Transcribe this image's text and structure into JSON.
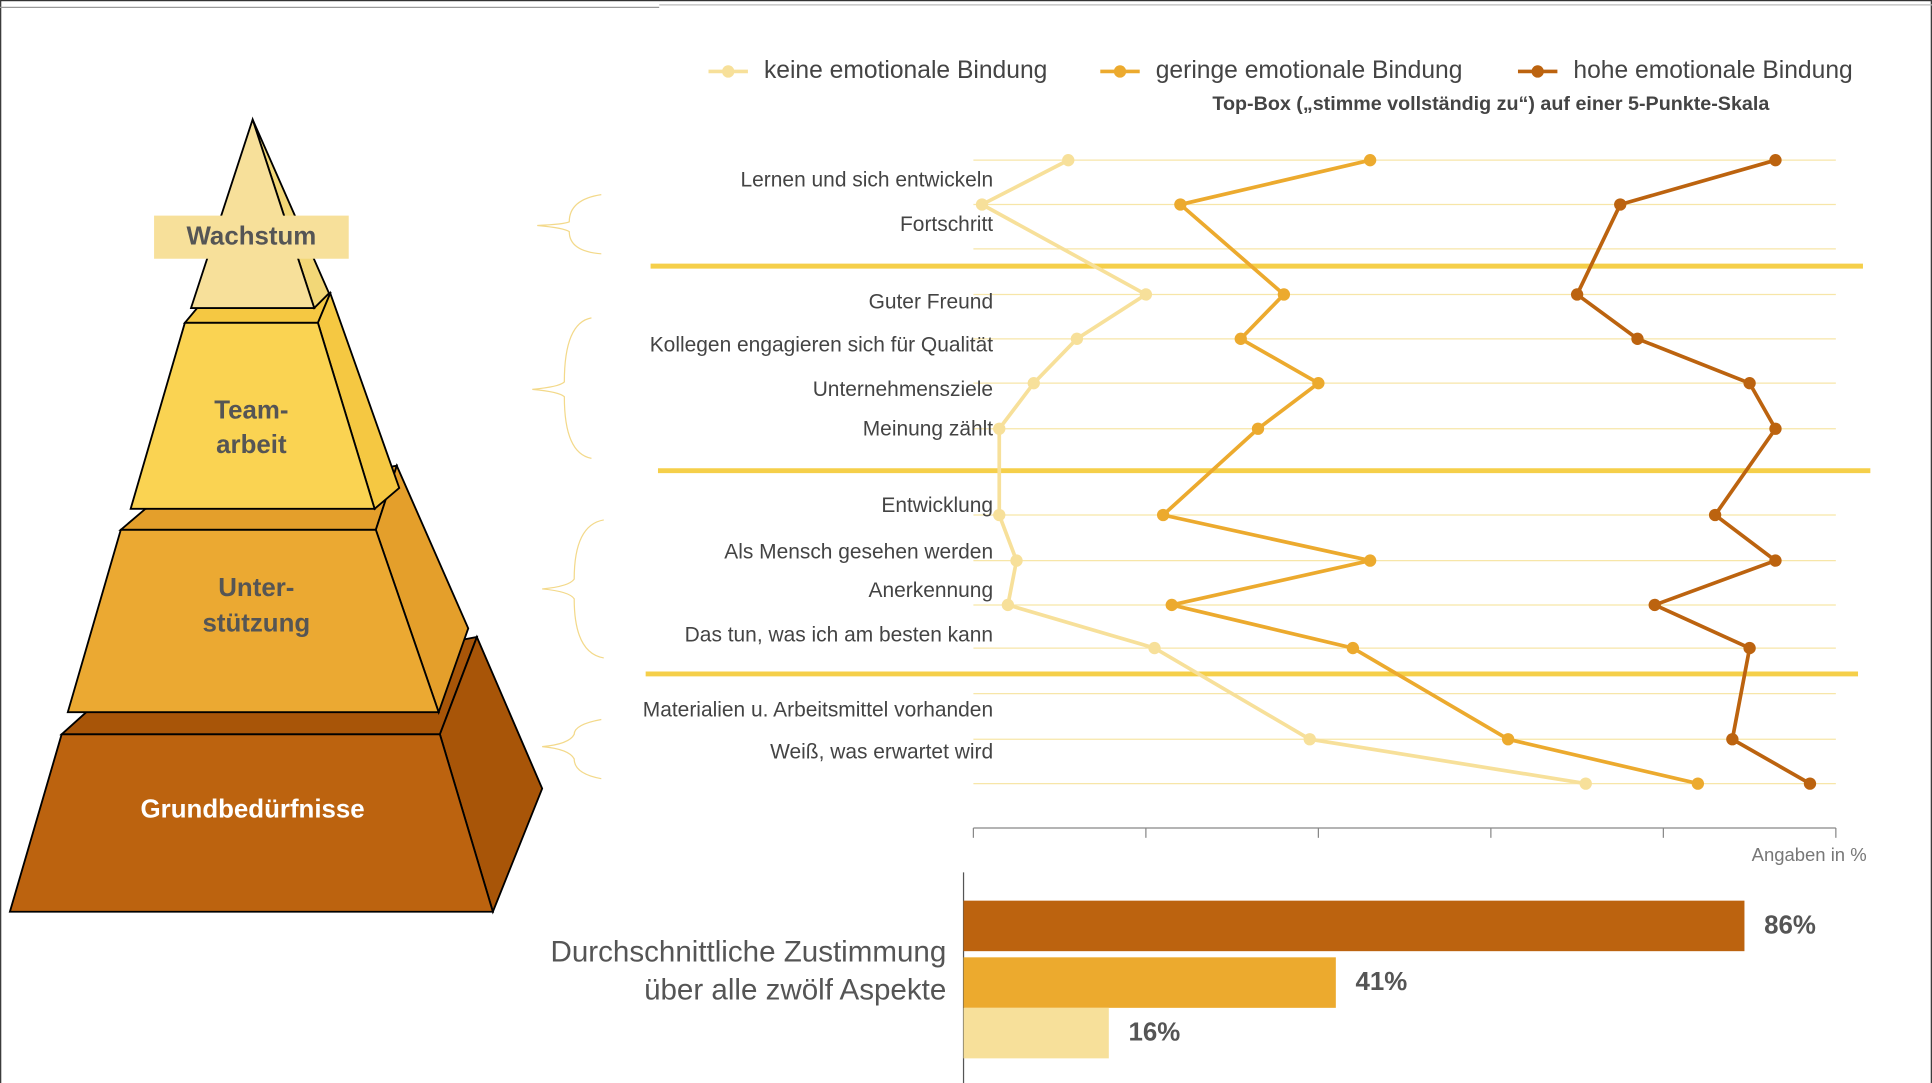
{
  "pyramid": {
    "levels": [
      [
        "Wachstum"
      ],
      [
        "Team-",
        "arbeit"
      ],
      [
        "Unter-",
        "stützung"
      ],
      [
        "Grundbedürfnisse"
      ]
    ]
  },
  "chart_data": [
    {
      "type": "line",
      "subtitle": "Top-Box („stimme vollständig zu“) auf einer 5-Punkte-Skala",
      "xlabel": "Angaben in %",
      "categories": [
        "Lernen und sich entwickeln",
        "Fortschritt",
        "Guter Freund",
        "Kollegen engagieren sich für Qualität",
        "Unternehmensziele",
        "Meinung zählt",
        "Entwicklung",
        "Als Mensch gesehen werden",
        "Anerkennung",
        "Das tun, was ich am besten kann",
        "Materialien u. Arbeitsmittel vorhanden",
        "Weiß, was erwartet wird"
      ],
      "series": [
        {
          "name": "keine emotionale Bindung",
          "color": "#f7e09a",
          "values": [
            11,
            1,
            20,
            12,
            7,
            3,
            3,
            5,
            4,
            21,
            39,
            71
          ]
        },
        {
          "name": "geringe emotionale Bindung",
          "color": "#ecaa2e",
          "values": [
            46,
            24,
            36,
            31,
            40,
            33,
            22,
            46,
            23,
            44,
            62,
            84
          ]
        },
        {
          "name": "hohe emotionale Bindung",
          "color": "#bc630f",
          "values": [
            93,
            75,
            70,
            77,
            90,
            93,
            86,
            93,
            79,
            90,
            88,
            97
          ]
        }
      ],
      "xlim": [
        0,
        100
      ],
      "xticks": [
        0,
        20,
        40,
        60,
        80,
        100
      ]
    },
    {
      "type": "bar",
      "title": [
        "Durchschnittliche Zustimmung",
        "über alle zwölf Aspekte"
      ],
      "values": [
        86,
        41,
        16
      ],
      "value_labels": [
        "86%",
        "41%",
        "16%"
      ],
      "colors": [
        "#bc630f",
        "#ecaa2e",
        "#f7e09a"
      ],
      "xlim": [
        0,
        100
      ]
    }
  ]
}
